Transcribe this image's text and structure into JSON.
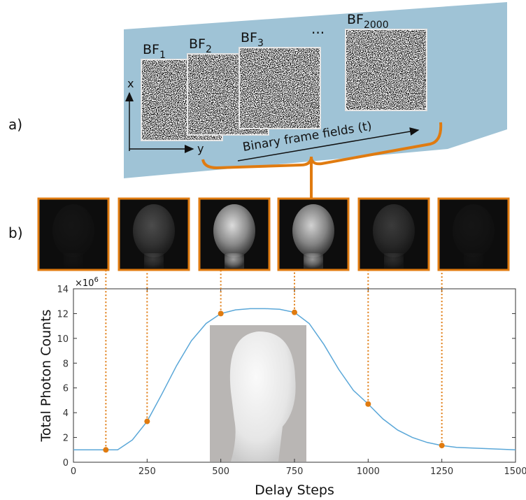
{
  "diagram": {
    "panel_labels": [
      "a)",
      "b)"
    ],
    "frames": [
      {
        "base": "BF",
        "sub": "1"
      },
      {
        "base": "BF",
        "sub": "2"
      },
      {
        "base": "BF",
        "sub": "3"
      },
      {
        "base": "BF",
        "sub": "2000"
      }
    ],
    "ellipsis": "...",
    "axis_x": "x",
    "axis_y": "y",
    "time_arrow": "Binary frame fields (t)"
  },
  "chart_data": {
    "type": "line",
    "xlabel": "Delay Steps",
    "ylabel": "Total Photon Counts",
    "y_multiplier": {
      "base": "×10",
      "exp": "6"
    },
    "xlim": [
      0,
      1500
    ],
    "ylim": [
      0,
      14
    ],
    "xticks": [
      0,
      250,
      500,
      750,
      1000,
      1250,
      1500
    ],
    "yticks": [
      0,
      2,
      4,
      6,
      8,
      10,
      12,
      14
    ],
    "series": [
      {
        "color": "#5aa7d8",
        "x": [
          0,
          100,
          150,
          200,
          250,
          300,
          350,
          400,
          450,
          500,
          550,
          600,
          650,
          700,
          750,
          800,
          850,
          900,
          950,
          1000,
          1050,
          1100,
          1150,
          1200,
          1250,
          1300,
          1400,
          1500
        ],
        "values": [
          1,
          1,
          1,
          1.8,
          3.3,
          5.5,
          7.8,
          9.8,
          11.2,
          12,
          12.3,
          12.4,
          12.4,
          12.35,
          12.1,
          11.2,
          9.5,
          7.5,
          5.8,
          4.7,
          3.5,
          2.6,
          2,
          1.6,
          1.35,
          1.2,
          1.1,
          1
        ]
      },
      {
        "color": "#e07b10",
        "x": [
          110,
          250,
          500,
          750,
          1000,
          1250
        ],
        "values": [
          1,
          3.3,
          12,
          12.1,
          4.7,
          1.35
        ]
      }
    ]
  }
}
